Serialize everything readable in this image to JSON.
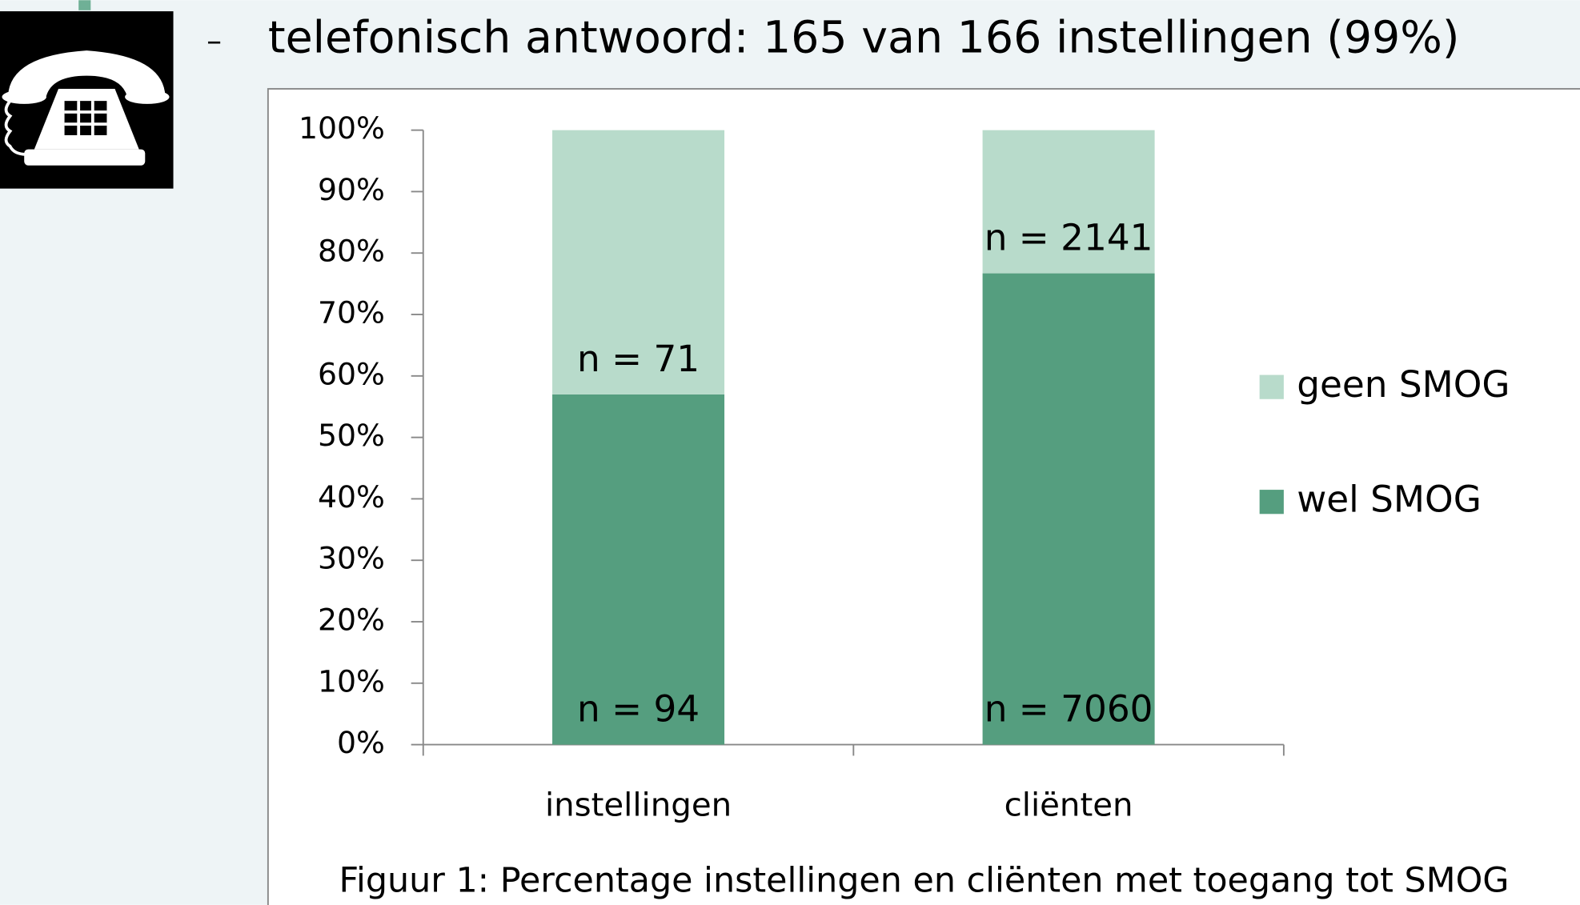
{
  "header": {
    "bullet": "–",
    "title": "telefonisch antwoord: 165 van 166 instellingen (99%)"
  },
  "chart_data": {
    "type": "stacked_bar",
    "categories": [
      "instellingen",
      "cliënten"
    ],
    "series": [
      {
        "name": "wel SMOG",
        "color": "#559e7f",
        "values": [
          57,
          76.7
        ],
        "annotations": [
          "n = 94",
          "n = 7060"
        ]
      },
      {
        "name": "geen SMOG",
        "color": "#b8dbcb",
        "values": [
          43,
          23.3
        ],
        "annotations": [
          "n = 71",
          "n = 2141"
        ]
      }
    ],
    "ylim": [
      0,
      100
    ],
    "yticks": [
      {
        "value": 0,
        "label": "0%"
      },
      {
        "value": 10,
        "label": "10%"
      },
      {
        "value": 20,
        "label": "20%"
      },
      {
        "value": 30,
        "label": "30%"
      },
      {
        "value": 40,
        "label": "40%"
      },
      {
        "value": 50,
        "label": "50%"
      },
      {
        "value": 60,
        "label": "60%"
      },
      {
        "value": 70,
        "label": "70%"
      },
      {
        "value": 80,
        "label": "80%"
      },
      {
        "value": 90,
        "label": "90%"
      },
      {
        "value": 100,
        "label": "100%"
      }
    ],
    "legend": "right",
    "caption": "Figuur 1: Percentage instellingen en cliënten met toegang tot SMOG"
  }
}
